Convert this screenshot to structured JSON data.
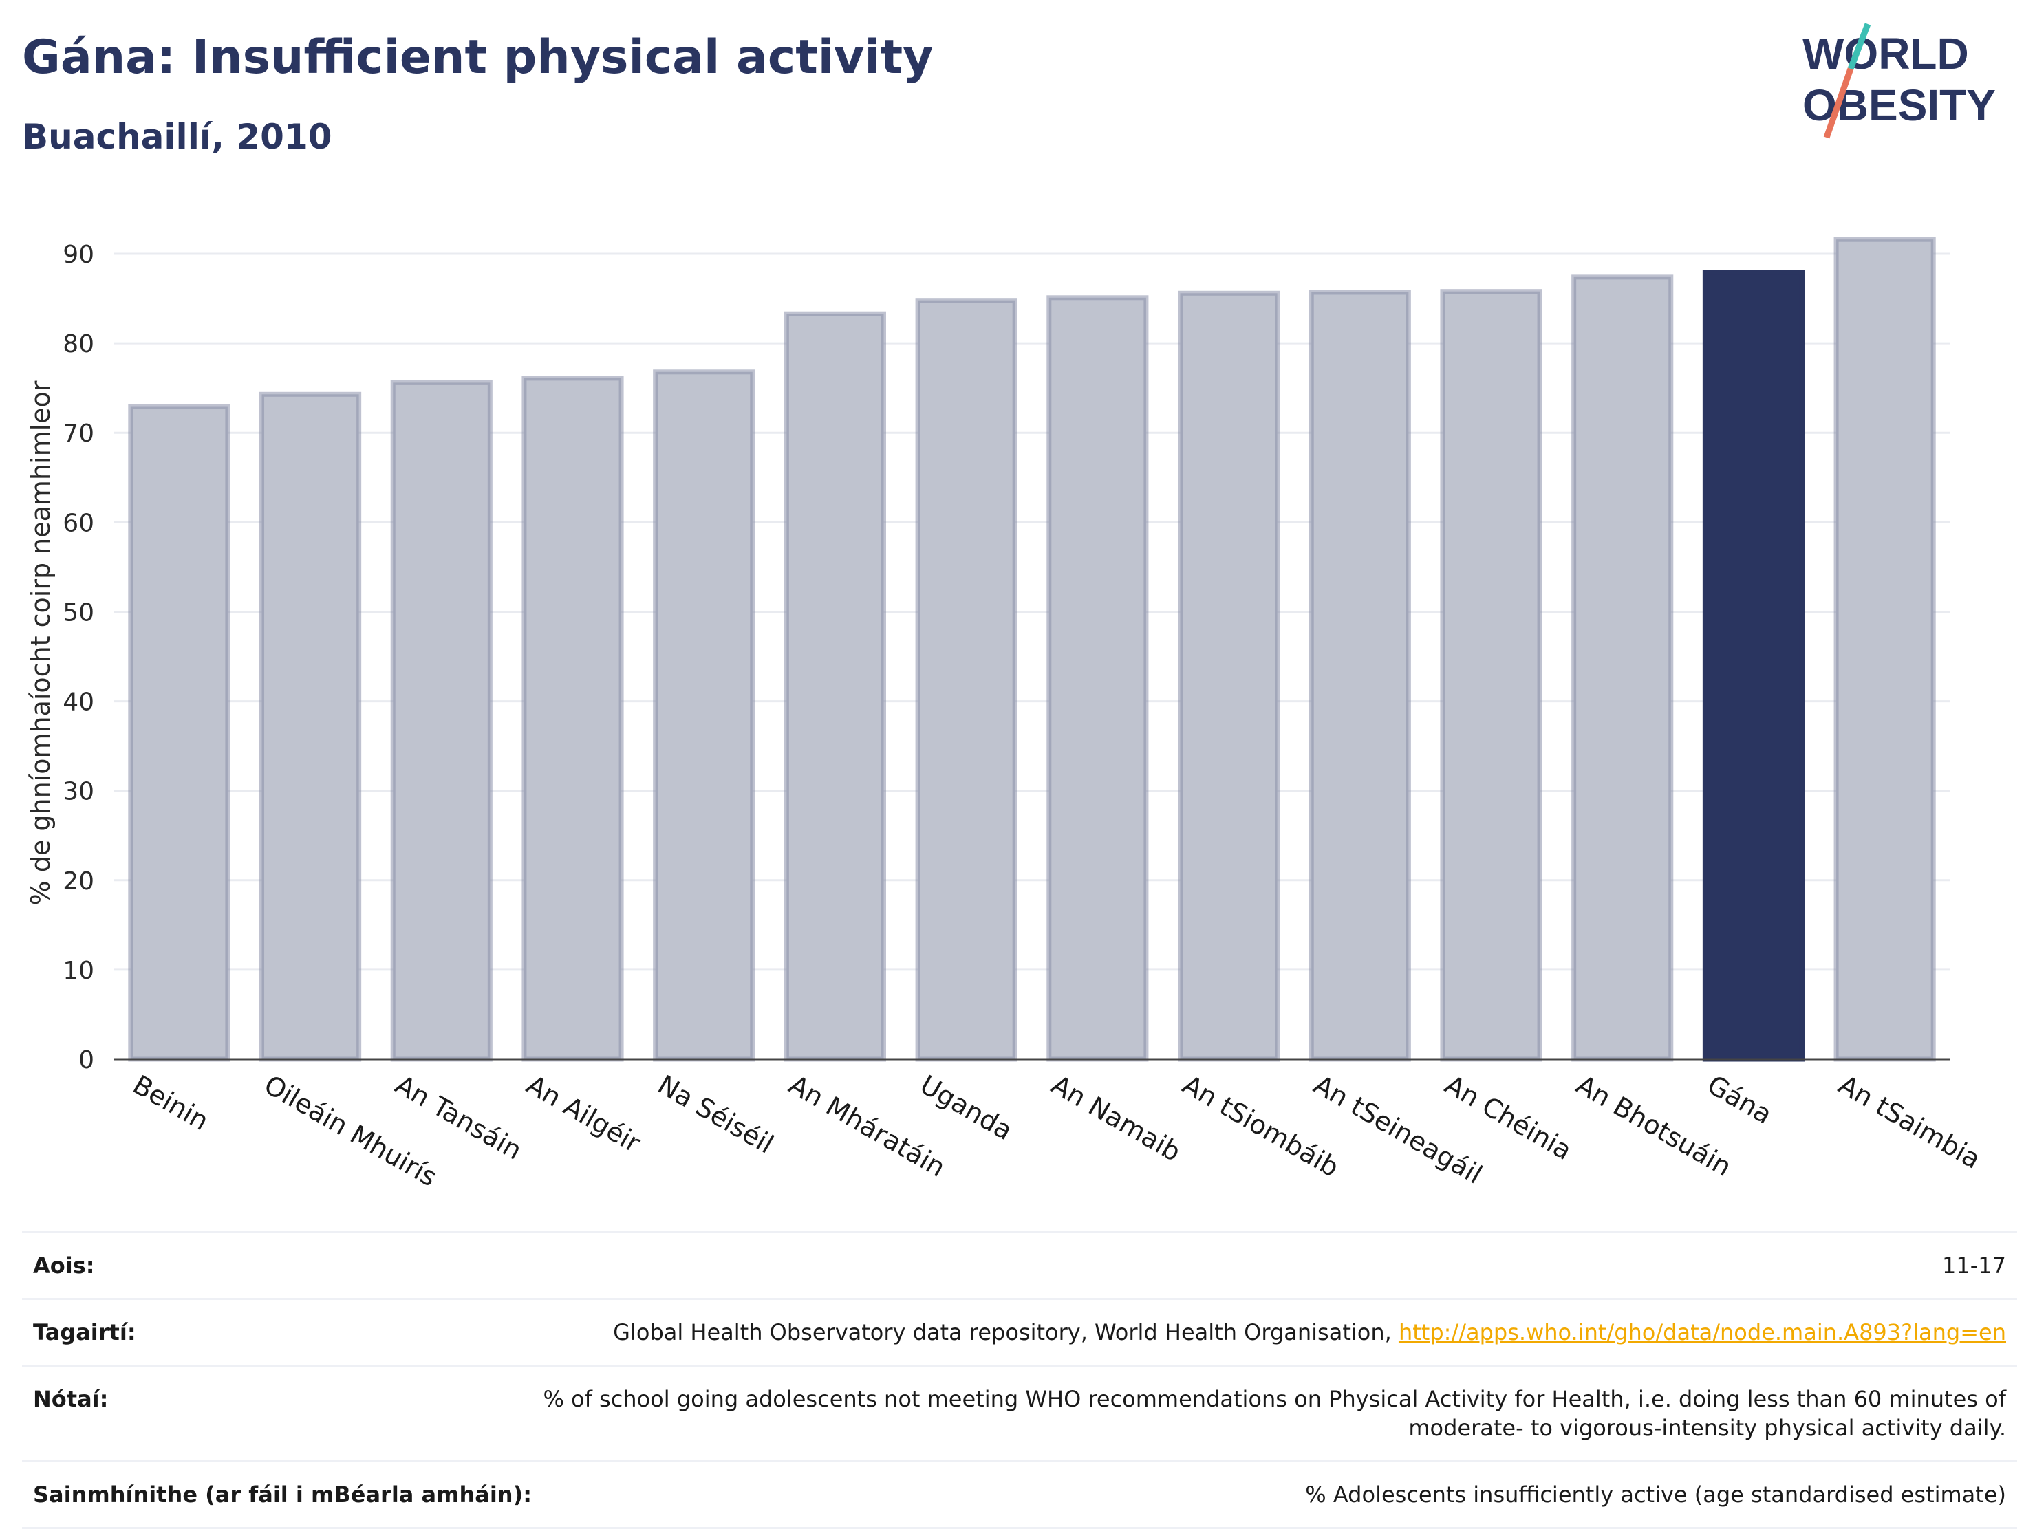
{
  "header": {
    "title": "Gána: Insufficient physical activity",
    "subtitle": "Buachaillí, 2010"
  },
  "logo": {
    "line1": "WORLD",
    "line2": "OBESITY"
  },
  "colors": {
    "highlight": "#2a3560",
    "bar": "#bfc3cf",
    "bar_border": "#8a90aa",
    "logo_teal": "#3dbfb3",
    "logo_coral": "#e8735a"
  },
  "chart_data": {
    "type": "bar",
    "categories": [
      "Beinin",
      "Oileáin Mhuirís",
      "An Tansáin",
      "An Ailgéir",
      "Na Séiséil",
      "An Mháratáin",
      "Uganda",
      "An Namaib",
      "An tSiombáib",
      "An tSeineagáil",
      "An Chéinia",
      "An Bhotsuáin",
      "Gána",
      "An tSaimbia"
    ],
    "values": [
      72.9,
      74.3,
      75.6,
      76.1,
      76.8,
      83.3,
      84.8,
      85.1,
      85.6,
      85.7,
      85.8,
      87.4,
      87.9,
      91.6
    ],
    "highlight": "Gána",
    "ylabel": "% de ghníomhaíocht coirp neamhimleor",
    "ylim": [
      0,
      93
    ],
    "yticks": [
      0,
      10,
      20,
      30,
      40,
      50,
      60,
      70,
      80,
      90
    ],
    "grid": true
  },
  "footer": {
    "rows": [
      {
        "label": "Aois:",
        "value": "11-17"
      },
      {
        "label": "Tagairtí:",
        "value": "Global Health Observatory data repository, World Health Organisation, ",
        "link": "http://apps.who.int/gho/data/node.main.A893?lang=en"
      },
      {
        "label": "Nótaí:",
        "value": "% of school going adolescents not meeting WHO recommendations on Physical Activity for Health, i.e. doing less than 60 minutes of moderate- to vigorous-intensity physical activity daily."
      },
      {
        "label": "Sainmhínithe (ar fáil i mBéarla amháin):",
        "value": "% Adolescents insufficiently active (age standardised estimate)"
      }
    ]
  }
}
